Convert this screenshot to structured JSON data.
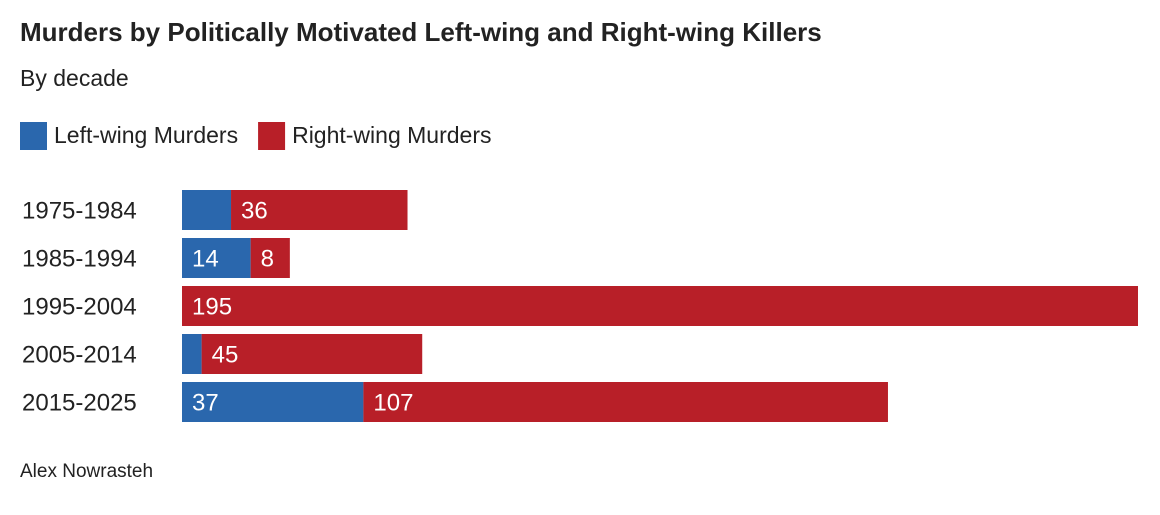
{
  "chart_data": {
    "type": "stacked-bar-horizontal",
    "title": "Murders by Politically Motivated Left-wing and Right-wing Killers",
    "subtitle": "By decade",
    "source": "Alex Nowrasteh",
    "categories": [
      "1975-1984",
      "1985-1994",
      "1995-2004",
      "2005-2014",
      "2015-2025"
    ],
    "series": [
      {
        "name": "Left-wing Murders",
        "color": "#2a67ad",
        "values": [
          10,
          14,
          0,
          4,
          37
        ],
        "value_labels": [
          null,
          "14",
          null,
          null,
          "37"
        ]
      },
      {
        "name": "Right-wing Murders",
        "color": "#b81f28",
        "values": [
          36,
          8,
          195,
          45,
          107
        ]
      }
    ],
    "legend": "top-left"
  }
}
